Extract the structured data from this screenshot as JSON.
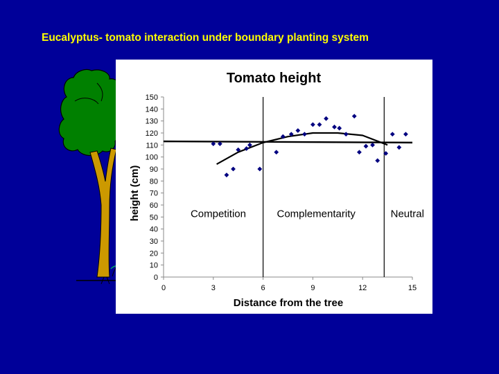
{
  "slide": {
    "title": "Eucalyptus- tomato interaction under boundary planting system"
  },
  "colors": {
    "background": "#000099",
    "title_text": "#ffff00",
    "tree_crown": "#008000",
    "tree_trunk": "#cc9900",
    "points": "#000080"
  },
  "chart_data": {
    "type": "scatter",
    "title": "Tomato height",
    "xlabel": "Distance from the tree",
    "ylabel": "height (cm)",
    "xlim": [
      0,
      15
    ],
    "ylim": [
      0,
      150
    ],
    "x_ticks": [
      0,
      3,
      6,
      9,
      12,
      15
    ],
    "y_ticks": [
      0,
      10,
      20,
      30,
      40,
      50,
      60,
      70,
      80,
      90,
      100,
      110,
      120,
      130,
      140,
      150
    ],
    "grid": false,
    "series": [
      {
        "points": [
          [
            3.0,
            111
          ],
          [
            3.4,
            111
          ],
          [
            3.8,
            85
          ],
          [
            4.2,
            90
          ],
          [
            4.5,
            106
          ],
          [
            5.0,
            107
          ],
          [
            5.2,
            110
          ],
          [
            5.8,
            90
          ],
          [
            6.8,
            104
          ],
          [
            7.2,
            117
          ],
          [
            7.7,
            119
          ],
          [
            8.1,
            122
          ],
          [
            8.5,
            119
          ],
          [
            9.0,
            127
          ],
          [
            9.4,
            127
          ],
          [
            9.8,
            132
          ],
          [
            10.3,
            125
          ],
          [
            10.6,
            124
          ],
          [
            11.0,
            119
          ],
          [
            11.5,
            134
          ],
          [
            11.8,
            104
          ],
          [
            12.2,
            109
          ],
          [
            12.6,
            110
          ],
          [
            12.9,
            97
          ],
          [
            13.4,
            103
          ],
          [
            13.8,
            119
          ],
          [
            14.2,
            108
          ],
          [
            14.6,
            119
          ]
        ]
      }
    ],
    "trend_lines": [
      {
        "kind": "linear",
        "points": [
          [
            0,
            113
          ],
          [
            15,
            112
          ]
        ]
      },
      {
        "kind": "quadratic",
        "points": [
          [
            3.2,
            94
          ],
          [
            4.5,
            104
          ],
          [
            6,
            112
          ],
          [
            7.5,
            117
          ],
          [
            9,
            120
          ],
          [
            10.5,
            120
          ],
          [
            12,
            118
          ],
          [
            13.5,
            110
          ]
        ]
      }
    ],
    "dividers": [
      6,
      13.3
    ],
    "zone_labels": [
      {
        "text": "Competition",
        "x": 3.3,
        "y": 50
      },
      {
        "text": "Complementarity",
        "x": 9.2,
        "y": 50
      },
      {
        "text": "Neutral",
        "x": 14.7,
        "y": 50
      }
    ]
  }
}
